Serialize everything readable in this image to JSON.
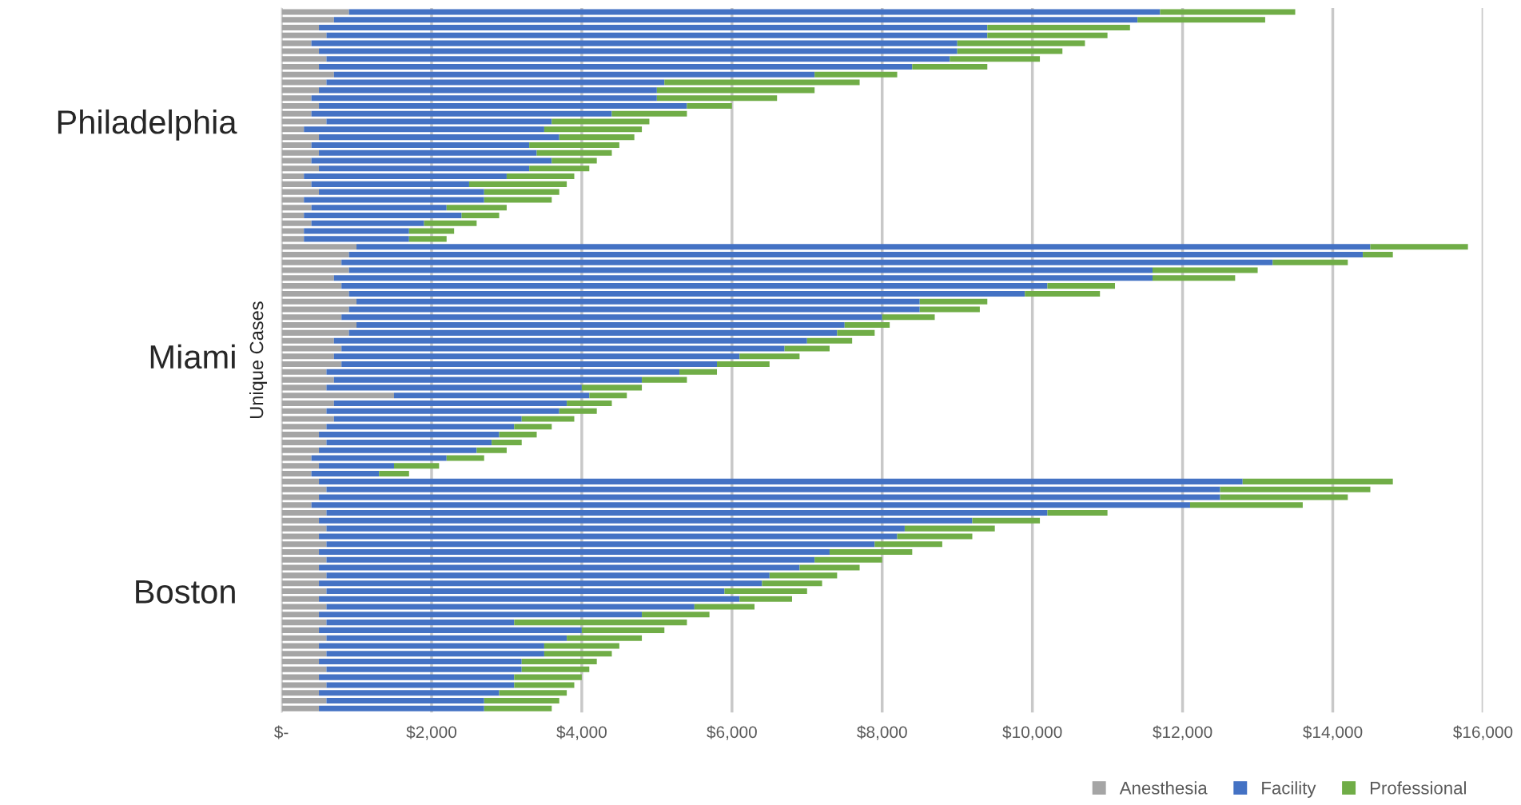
{
  "chart_data": {
    "type": "bar",
    "orientation": "horizontal",
    "stacked": true,
    "ylabel": "Unique Cases",
    "categories": [
      null,
      null,
      null,
      null,
      null,
      null,
      null,
      null,
      null,
      null,
      null,
      null,
      null,
      null,
      "Philadelphia",
      null,
      null,
      null,
      null,
      null,
      null,
      null,
      null,
      null,
      null,
      null,
      null,
      null,
      null,
      null,
      null,
      null,
      null,
      null,
      null,
      null,
      null,
      null,
      null,
      null,
      null,
      null,
      null,
      null,
      "Miami",
      null,
      null,
      null,
      null,
      null,
      null,
      null,
      null,
      null,
      null,
      null,
      null,
      null,
      null,
      null,
      null,
      null,
      null,
      null,
      null,
      null,
      null,
      null,
      null,
      null,
      null,
      null,
      null,
      null,
      "Boston",
      null,
      null,
      null,
      null,
      null,
      null,
      null,
      null,
      null,
      null,
      null,
      null,
      null,
      null,
      null
    ],
    "series": [
      {
        "name": "Anesthesia",
        "color": "#a5a5a5",
        "values": [
          900,
          700,
          500,
          600,
          400,
          500,
          600,
          500,
          700,
          600,
          500,
          400,
          500,
          400,
          600,
          300,
          500,
          400,
          500,
          400,
          500,
          300,
          400,
          500,
          300,
          400,
          300,
          400,
          300,
          300,
          1000,
          900,
          800,
          900,
          700,
          800,
          900,
          1000,
          900,
          800,
          1000,
          900,
          700,
          800,
          700,
          800,
          600,
          700,
          600,
          1500,
          700,
          600,
          700,
          600,
          500,
          600,
          500,
          400,
          500,
          400,
          500,
          600,
          500,
          400,
          600,
          500,
          600,
          500,
          600,
          500,
          600,
          500,
          600,
          500,
          600,
          500,
          600,
          500,
          600,
          500,
          600,
          500,
          600,
          500,
          600,
          500,
          600,
          500,
          600,
          500
        ]
      },
      {
        "name": "Facility",
        "color": "#4472c4",
        "values": [
          10800,
          10700,
          8900,
          8800,
          8600,
          8500,
          8300,
          7900,
          6400,
          4500,
          4500,
          4600,
          4900,
          4000,
          3000,
          3200,
          3200,
          2900,
          2900,
          3200,
          2800,
          2700,
          2100,
          2200,
          2400,
          1800,
          2100,
          1500,
          1400,
          1400,
          13500,
          13500,
          12400,
          10700,
          10900,
          9400,
          9000,
          7500,
          7600,
          7200,
          6500,
          6500,
          6300,
          5900,
          5400,
          5000,
          4700,
          4100,
          3400,
          2600,
          3100,
          3100,
          2500,
          2500,
          2400,
          2200,
          2100,
          1800,
          1000,
          900,
          12300,
          11900,
          12000,
          11700,
          9600,
          8700,
          7700,
          7700,
          7300,
          6800,
          6500,
          6400,
          5900,
          5900,
          5300,
          5600,
          4900,
          4300,
          2500,
          3500,
          3200,
          3000,
          2900,
          2700,
          2600,
          2600,
          2500,
          2400,
          2100,
          2200
        ]
      },
      {
        "name": "Professional",
        "color": "#70ad47",
        "values": [
          1800,
          1700,
          1900,
          1600,
          1700,
          1400,
          1200,
          1000,
          1100,
          2600,
          2100,
          1600,
          600,
          1000,
          1300,
          1300,
          1000,
          1200,
          1000,
          600,
          800,
          900,
          1300,
          1000,
          900,
          800,
          500,
          700,
          600,
          500,
          1300,
          400,
          1000,
          1400,
          1100,
          900,
          1000,
          900,
          800,
          700,
          600,
          500,
          600,
          600,
          800,
          700,
          500,
          600,
          800,
          500,
          600,
          500,
          700,
          500,
          500,
          400,
          400,
          500,
          600,
          400,
          2000,
          2000,
          1700,
          1500,
          800,
          900,
          1200,
          1000,
          900,
          1100,
          900,
          800,
          900,
          800,
          1100,
          700,
          800,
          900,
          2300,
          1100,
          1000,
          1000,
          900,
          1000,
          900,
          900,
          800,
          900,
          1000,
          900
        ]
      }
    ],
    "xlim": [
      0,
      16000
    ],
    "xticks": [
      {
        "value": 0,
        "label": "$-"
      },
      {
        "value": 2000,
        "label": "$2,000"
      },
      {
        "value": 4000,
        "label": "$4,000"
      },
      {
        "value": 6000,
        "label": "$6,000"
      },
      {
        "value": 8000,
        "label": "$8,000"
      },
      {
        "value": 10000,
        "label": "$10,000"
      },
      {
        "value": 12000,
        "label": "$12,000"
      },
      {
        "value": 14000,
        "label": "$14,000"
      },
      {
        "value": 16000,
        "label": "$16,000"
      }
    ],
    "grid": "x",
    "legend": "bottom right"
  }
}
